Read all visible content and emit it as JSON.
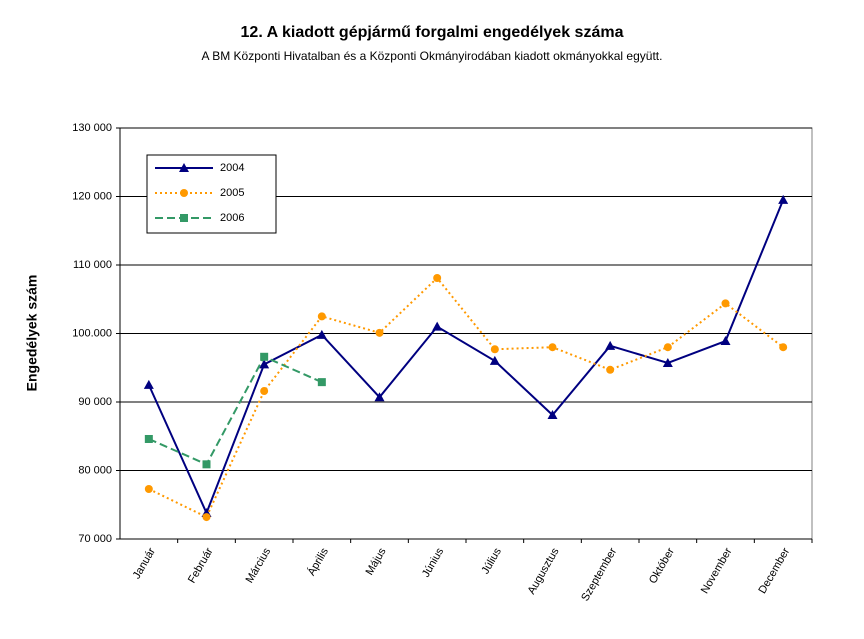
{
  "chart_data": {
    "type": "line",
    "title": "12. A  kiadott gépjármű forgalmi engedélyek száma",
    "subtitle": "A BM Központi Hivatalban és a Központi Okmányirodában kiadott okmányokkal együtt.",
    "y_label": "Engedélyek szám",
    "categories": [
      "Január",
      "Február",
      "Március",
      "Április",
      "Május",
      "Június",
      "Július",
      "Augusztus",
      "Szeptember",
      "Október",
      "November",
      "December"
    ],
    "series": [
      {
        "name": "2004",
        "color": "#000080",
        "marker": "triangle",
        "dash": "solid",
        "values": [
          92500,
          73800,
          95500,
          99800,
          90700,
          101000,
          96000,
          88100,
          98200,
          95700,
          98900,
          119500
        ]
      },
      {
        "name": "2005",
        "color": "#ff9900",
        "marker": "circle",
        "dash": "dotted",
        "values": [
          77300,
          73200,
          91600,
          102500,
          100100,
          108100,
          97700,
          98000,
          94700,
          98000,
          104400,
          98000
        ]
      },
      {
        "name": "2006",
        "color": "#339966",
        "marker": "square",
        "dash": "dashed",
        "values": [
          84600,
          80900,
          96600,
          92900,
          null,
          null,
          null,
          null,
          null,
          null,
          null,
          null
        ]
      }
    ],
    "ylim": [
      70000,
      130000
    ],
    "yticks": [
      {
        "value": 70000,
        "label": "70 000"
      },
      {
        "value": 80000,
        "label": "80 000"
      },
      {
        "value": 90000,
        "label": "90 000"
      },
      {
        "value": 100000,
        "label": "100.000"
      },
      {
        "value": 110000,
        "label": "110 000"
      },
      {
        "value": 120000,
        "label": "120 000"
      },
      {
        "value": 130000,
        "label": "130 000"
      }
    ],
    "grid": true,
    "legend": "upper left"
  }
}
